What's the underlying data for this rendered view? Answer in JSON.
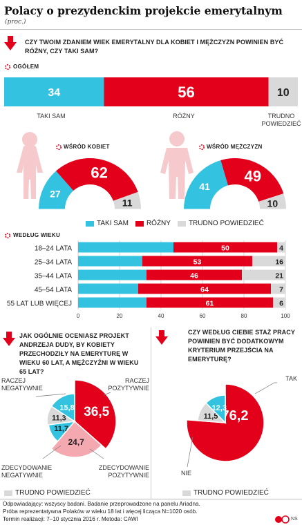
{
  "header": {
    "title": "Polacy o prezydenckim projekcie emerytalnym",
    "unit": "(proc.)"
  },
  "colors": {
    "same": "#33c3e0",
    "different": "#e2001a",
    "hard": "#d9d9d9",
    "neg_light": "#f4a9b0",
    "dark": "#222222"
  },
  "q1": {
    "text": "CZY TWOIM ZDANIEM WIEK EMERYTALNY DLA KOBIET I MĘŻCZYZN POWINIEN BYĆ RÓŻNY, CZY TAKI SAM?",
    "overall_label": "OGÓŁEM",
    "women_label": "WŚRÓD KOBIET",
    "men_label": "WŚRÓD MĘŻCZYZN",
    "by_age_label": "WEDŁUG WIEKU",
    "cat_same": "TAKI SAM",
    "cat_diff": "RÓŻNY",
    "cat_hard_line1": "TRUDNO",
    "cat_hard_line2": "POWIEDZIEĆ",
    "legend_same": "TAKI SAM",
    "legend_diff": "RÓŻNY",
    "legend_hard": "TRUDNO POWIEDZIEĆ"
  },
  "q2": {
    "text": "JAK OGÓLNIE OCENIASZ PROJEKT ANDRZEJA DUDY, BY KOBIETY PRZECHODZIŁY NA EMERYTURĘ W WIEKU 60 LAT, A MĘŻCZYŹNI W WIEKU 65 LAT?",
    "lbl_rneg_1": "RACZEJ",
    "lbl_rneg_2": "NEGATYWNIE",
    "lbl_rpos_1": "RACZEJ",
    "lbl_rpos_2": "POZYTYWNIE",
    "lbl_zneg_1": "ZDECYDOWANIE",
    "lbl_zneg_2": "NEGATYWNIE",
    "lbl_zpos_1": "ZDECYDOWANIE",
    "lbl_zpos_2": "POZYTYWNIE",
    "legend_hard": "TRUDNO POWIEDZIEĆ"
  },
  "q3": {
    "text": "CZY WEDŁUG CIEBIE STAŻ PRACY POWINIEN BYĆ DODATKOWYM KRYTERIUM PRZEJŚCIA NA EMERYTURĘ?",
    "lbl_yes": "TAK",
    "lbl_no": "NIE",
    "legend_hard": "TRUDNO POWIEDZIEĆ"
  },
  "footer": {
    "line1": "Odpowiadający: wszyscy badani. Badanie przeprowadzone na panelu Ariadna.",
    "line2": "Próba reprezentatywna Polaków w wieku 18 lat i więcej licząca N=1020 osób.",
    "line3": "Termin realizacji: 7–10 stycznia 2016 r. Metoda: CAWI",
    "brand": "NS"
  },
  "chart_data": [
    {
      "type": "bar",
      "name": "OGÓŁEM",
      "stacked": true,
      "categories": [
        "TAKI SAM",
        "RÓŻNY",
        "TRUDNO POWIEDZIEĆ"
      ],
      "values": [
        34,
        56,
        10
      ]
    },
    {
      "type": "pie",
      "name": "WŚRÓD KOBIET",
      "semicircle": true,
      "categories": [
        "TAKI SAM",
        "RÓŻNY",
        "TRUDNO POWIEDZIEĆ"
      ],
      "values": [
        27,
        62,
        11
      ]
    },
    {
      "type": "pie",
      "name": "WŚRÓD MĘŻCZYZN",
      "semicircle": true,
      "categories": [
        "TAKI SAM",
        "RÓŻNY",
        "TRUDNO POWIEDZIEĆ"
      ],
      "values": [
        41,
        49,
        10
      ]
    },
    {
      "type": "bar",
      "name": "WEDŁUG WIEKU",
      "stacked": true,
      "horizontal": true,
      "categories": [
        "18–24 LATA",
        "25–34 LATA",
        "35–44 LATA",
        "45–54 LATA",
        "55 LAT LUB WIĘCEJ"
      ],
      "series": [
        {
          "name": "TAKI SAM",
          "values": [
            46,
            31,
            33,
            29,
            33
          ]
        },
        {
          "name": "RÓŻNY",
          "values": [
            50,
            53,
            46,
            64,
            61
          ]
        },
        {
          "name": "TRUDNO POWIEDZIEĆ",
          "values": [
            4,
            16,
            21,
            7,
            6
          ]
        }
      ],
      "xlim": [
        0,
        100
      ],
      "xticks": [
        "0",
        "20",
        "40",
        "60",
        "80",
        "100"
      ]
    },
    {
      "type": "pie",
      "name": "Ocena projektu",
      "categories": [
        "ZDECYDOWANIE POZYTYWNIE",
        "RACZEJ POZYTYWNIE",
        "ZDECYDOWANIE NEGATYWNIE",
        "RACZEJ NEGATYWNIE",
        "TRUDNO POWIEDZIEĆ"
      ],
      "values": [
        24.7,
        36.5,
        11.7,
        15.8,
        11.3
      ],
      "labels": [
        "24,7",
        "36,5",
        "11,7",
        "15,8",
        "11,3"
      ]
    },
    {
      "type": "pie",
      "name": "Staż pracy",
      "categories": [
        "TAK",
        "NIE",
        "TRUDNO POWIEDZIEĆ"
      ],
      "values": [
        76.2,
        12.3,
        11.5
      ],
      "labels": [
        "76,2",
        "12,3",
        "11,5"
      ]
    }
  ]
}
